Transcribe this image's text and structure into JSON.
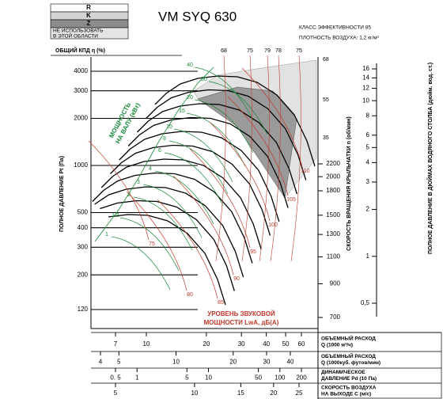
{
  "legend": {
    "r": "R",
    "k": "K",
    "z": "Z",
    "no_use": [
      "НЕ ИСПОЛЬЗОВАТЬ",
      "В ЭТОЙ ОБЛАСТИ"
    ]
  },
  "title": "VM SYQ 630",
  "efficiency_class": "КЛАСС ЭФФЕКТИВНОСТИ 85",
  "air_density": "ПЛОТНОСТЬ ВОЗДУХА: 1,2 кг/м³",
  "efficiency_label": "ОБЩИЙ КПД η (%)",
  "efficiency_top": [
    68,
    75,
    79,
    78,
    75
  ],
  "efficiency_right": [
    68,
    55,
    35
  ],
  "pressure_axis": {
    "label": "ПОЛНОЕ ДАВЛЕНИЕ Pt (Па)",
    "ticks": [
      4000,
      3000,
      2000,
      1000,
      500,
      400,
      300,
      200,
      120
    ]
  },
  "rpm_axis": {
    "label": "СКОРОСТЬ ВРАЩЕНИЯ КРЫЛЬЧАТКИ n (об/мин)",
    "ticks": [
      2200,
      2000,
      1800,
      1500,
      1300,
      1100,
      900,
      700
    ]
  },
  "inch_axis": {
    "label": "ПОЛНОЕ ДАВЛЕНИЕ В ДЮЙМАХ ВОДЯНОГО СТОЛБА (дюйм. вод. ст.)",
    "ticks": [
      16,
      14,
      12,
      10,
      8,
      6,
      5,
      4,
      3,
      2,
      1,
      {
        "value": 0.5,
        "label": "0,5"
      }
    ]
  },
  "power": {
    "label": [
      "МОЩНОСТЬ",
      "НА ВАЛУ (кВт)"
    ],
    "values": [
      40,
      30,
      20,
      15,
      10,
      8,
      6,
      4,
      3,
      2,
      1.5,
      1
    ]
  },
  "sound": {
    "label": [
      "УРОВЕНЬ ЗВУКОВОЙ",
      "МОЩНОСТИ LwA, дБ(А)"
    ],
    "values": [
      110,
      105,
      100,
      95,
      90,
      85,
      80,
      75
    ]
  },
  "scales": [
    {
      "label": [
        "ОБЪЕМНЫЙ РАСХОД",
        "Q (1000 м³/ч)"
      ],
      "ticks": [
        7,
        10,
        20,
        30,
        40,
        50,
        60
      ]
    },
    {
      "label": [
        "ОБЪЕМНЫЙ РАСХОД",
        "Q (1000куб. футов/мин)"
      ],
      "ticks": [
        4,
        5,
        10,
        20,
        30,
        40
      ]
    },
    {
      "label": [
        "ДИНАМИЧЕСКОЕ",
        "ДАВЛЕНИЕ Pd (10 Па)"
      ],
      "ticks": [
        {
          "value": 0.5,
          "label": "0. 5"
        },
        1,
        5,
        10,
        50,
        100,
        200
      ]
    },
    {
      "label": [
        "СКОРОСТЬ ВОЗДУХА",
        "НА ВЫХОДЕ C (м/с)"
      ],
      "ticks": [
        5,
        10,
        15,
        20,
        25
      ]
    }
  ]
}
